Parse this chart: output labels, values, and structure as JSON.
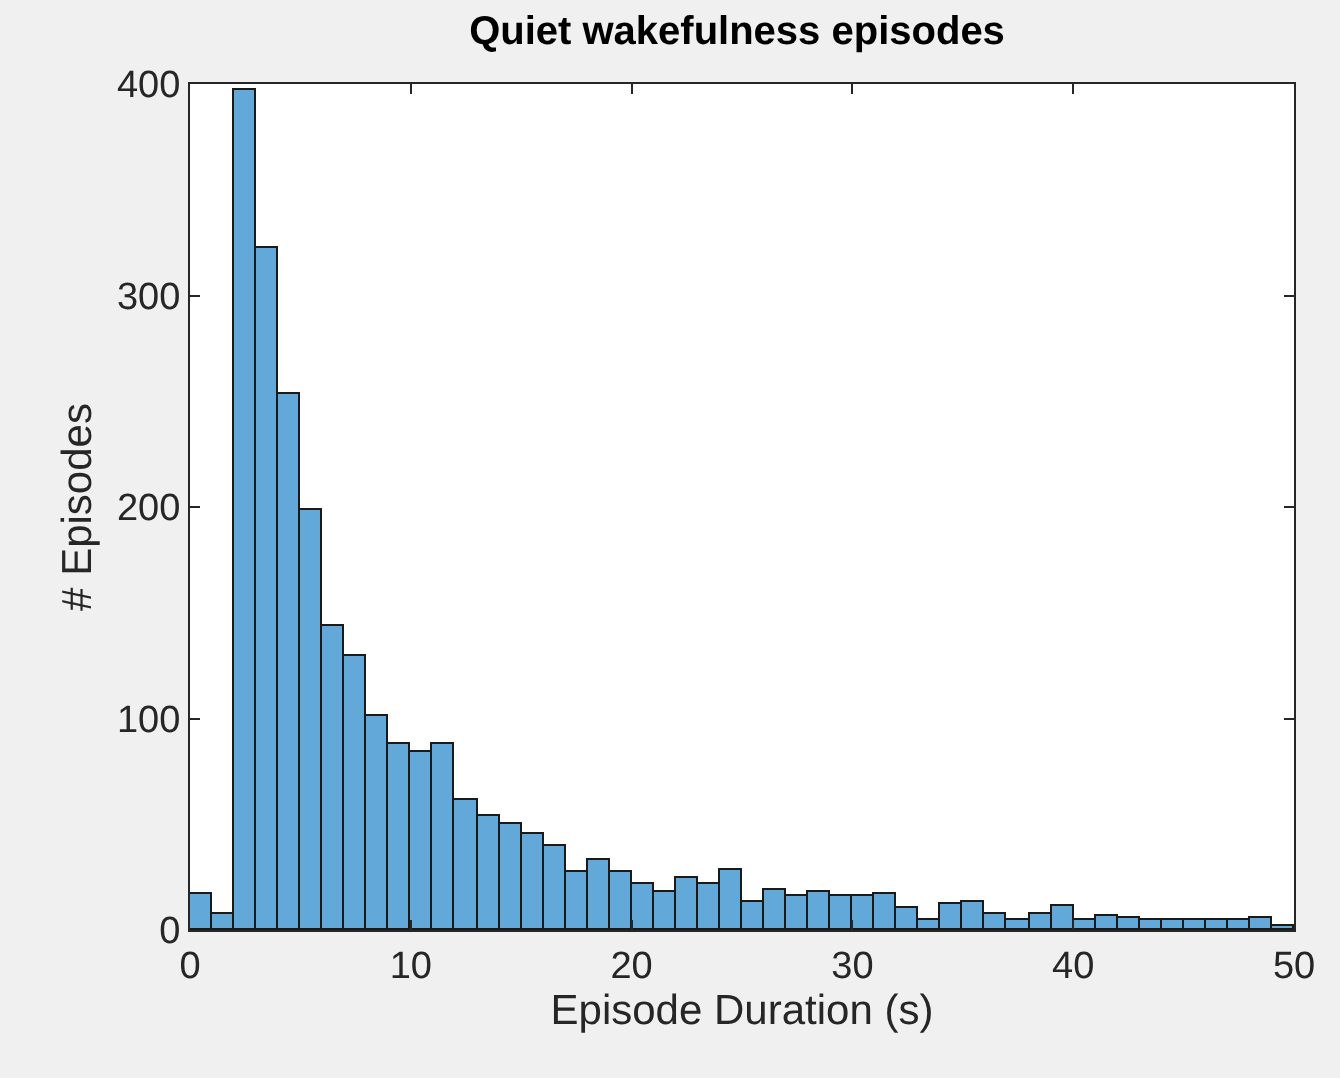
{
  "chart_data": {
    "type": "histogram",
    "title": "Quiet wakefulness episodes",
    "xlabel": "Episode Duration (s)",
    "ylabel": "# Episodes",
    "bins": [
      0,
      1,
      2,
      3,
      4,
      5,
      6,
      7,
      8,
      9,
      10,
      11,
      12,
      13,
      14,
      15,
      16,
      17,
      18,
      19,
      20,
      21,
      22,
      23,
      24,
      25,
      26,
      27,
      28,
      29,
      30,
      31,
      32,
      33,
      34,
      35,
      36,
      37,
      38,
      39,
      40,
      41,
      42,
      43,
      44,
      45,
      46,
      47,
      48,
      49,
      50
    ],
    "values": [
      17,
      8,
      397,
      322,
      253,
      199,
      144,
      130,
      101,
      88,
      84,
      88,
      61,
      54,
      50,
      45,
      40,
      27,
      33,
      27,
      22,
      18,
      25,
      22,
      28,
      13,
      19,
      16,
      18,
      16,
      16,
      17,
      10,
      5,
      12,
      13,
      8,
      5,
      8,
      11,
      5,
      7,
      6,
      5,
      5,
      5,
      5,
      5,
      6,
      2
    ],
    "color": "#62a8d8",
    "xlim": [
      0,
      50
    ],
    "xticks": [
      0,
      10,
      20,
      30,
      40,
      50
    ],
    "ylim": [
      0,
      400
    ],
    "yticks": [
      0,
      100,
      200,
      300,
      400
    ]
  }
}
